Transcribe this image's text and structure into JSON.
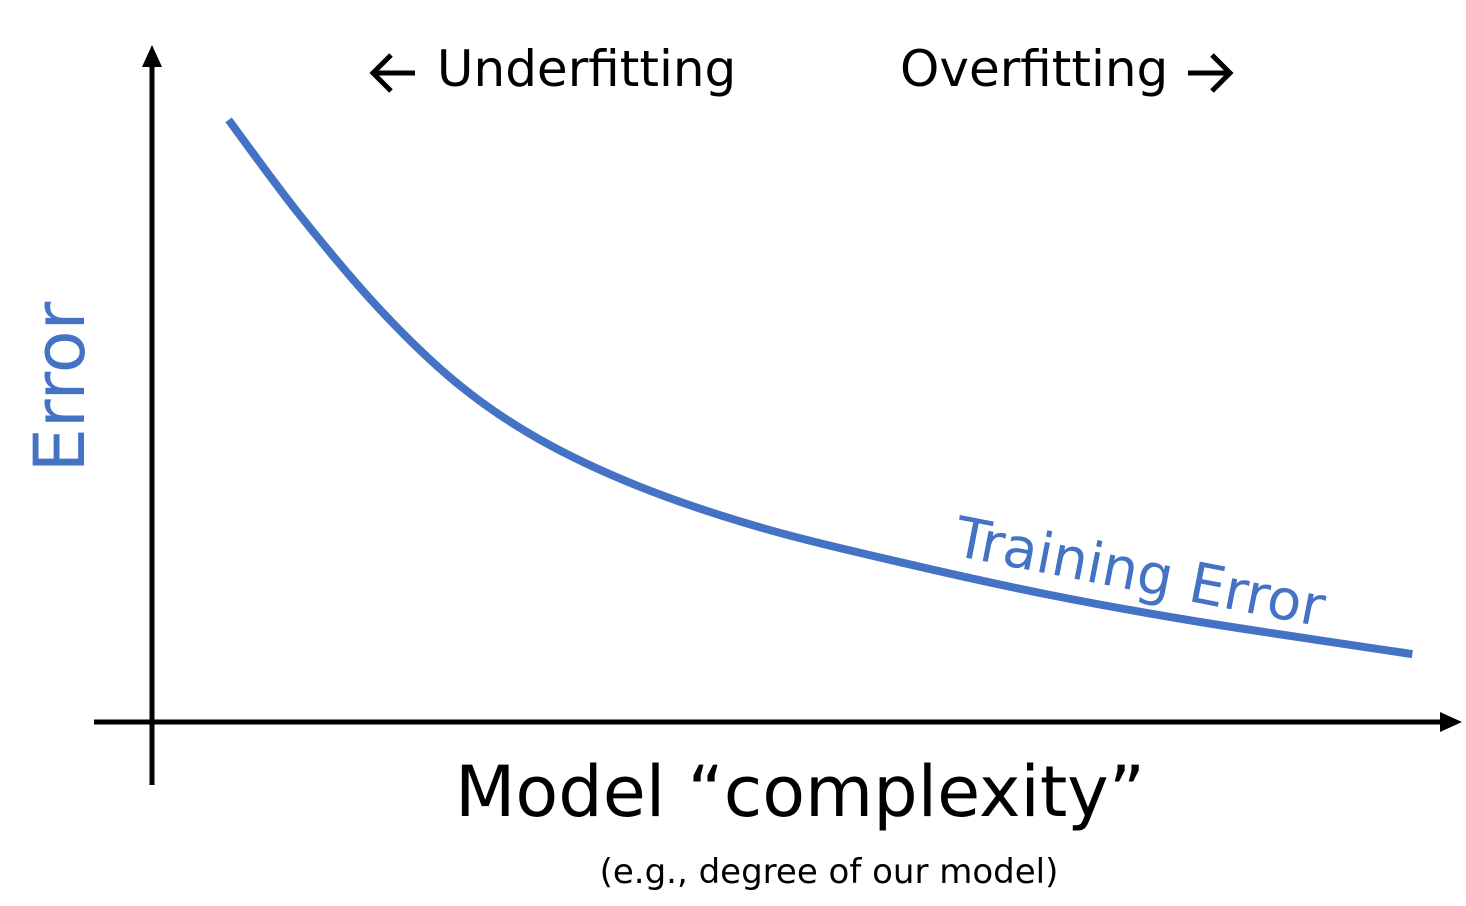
{
  "chart_data": {
    "type": "line",
    "title": "",
    "xlabel": "Model “complexity”",
    "xlabel_note": "(e.g., degree of our model)",
    "ylabel": "Error",
    "xlim": [
      0,
      100
    ],
    "ylim": [
      0,
      100
    ],
    "grid": false,
    "axis_ticks": false,
    "annotations": [
      {
        "text": "Underfitting",
        "arrow": "left-arrow-icon"
      },
      {
        "text": "Overfitting",
        "arrow": "right-arrow-icon"
      }
    ],
    "series": [
      {
        "name": "Training Error",
        "color": "#4472C4",
        "x": [
          5.9,
          11.4,
          17.6,
          23.7,
          29.9,
          37.6,
          46.8,
          57.6,
          69.2,
          80.7,
          97.1
        ],
        "y": [
          89.6,
          75.4,
          61.3,
          50.1,
          42.0,
          35.0,
          29.0,
          23.8,
          18.9,
          14.9,
          10.1
        ]
      }
    ]
  }
}
